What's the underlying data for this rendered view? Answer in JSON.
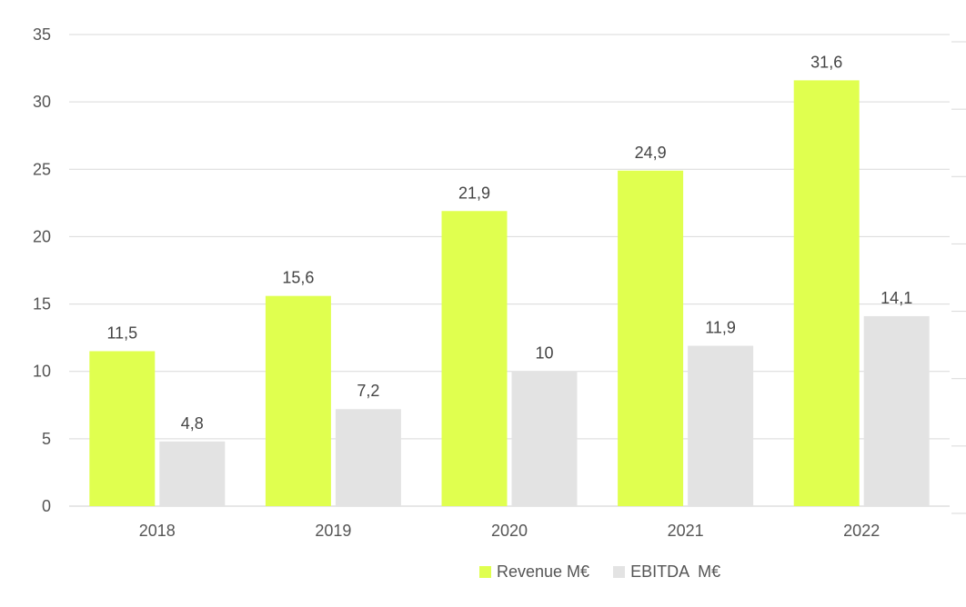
{
  "chart_data": {
    "type": "bar",
    "categories": [
      "2018",
      "2019",
      "2020",
      "2021",
      "2022"
    ],
    "series": [
      {
        "name": "Revenue M€",
        "values": [
          11.5,
          15.6,
          21.9,
          24.9,
          31.6
        ],
        "labels": [
          "11,5",
          "15,6",
          "21,9",
          "24,9",
          "31,6"
        ],
        "color": "#e0ff4f"
      },
      {
        "name": "EBITDA  M€",
        "values": [
          4.8,
          7.2,
          10,
          11.9,
          14.1
        ],
        "labels": [
          "4,8",
          "7,2",
          "10",
          "11,9",
          "14,1"
        ],
        "color": "#e3e3e3"
      }
    ],
    "ylim": [
      0,
      35
    ],
    "yticks": [
      "0",
      "5",
      "10",
      "15",
      "20",
      "25",
      "30",
      "35"
    ],
    "ytick_values": [
      0,
      5,
      10,
      15,
      20,
      25,
      30,
      35
    ],
    "grid": true,
    "grid_color": "#d9d9d9",
    "legend_position": "bottom",
    "title": "",
    "xlabel": "",
    "ylabel": ""
  }
}
